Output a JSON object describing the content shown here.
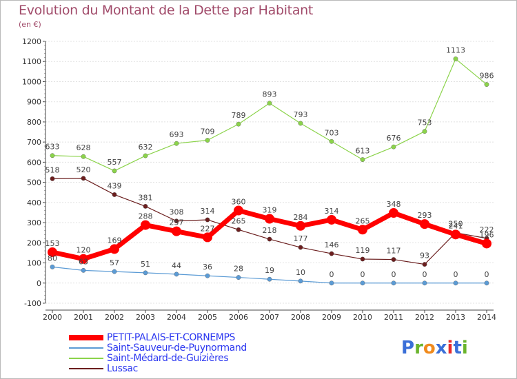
{
  "header": {
    "title": "Evolution du Montant de la Dette par Habitant",
    "subtitle": "(en €)"
  },
  "logo": {
    "text": "Proxiti",
    "colors": [
      "#3a6fd8",
      "#6ab42d",
      "#f08a1c",
      "#3a6fd8",
      "#e8292a",
      "#3a6fd8",
      "#6ab42d"
    ]
  },
  "chart_data": {
    "type": "line",
    "title": "Evolution du Montant de la Dette par Habitant",
    "subtitle": "(en €)",
    "xlabel": "",
    "ylabel": "",
    "ylim": [
      -100,
      1200
    ],
    "yticks": [
      -100,
      0,
      100,
      200,
      300,
      400,
      500,
      600,
      700,
      800,
      900,
      1000,
      1100,
      1200
    ],
    "grid": true,
    "legend_position": "bottom-left",
    "x": [
      "2000",
      "2001",
      "2002",
      "2003",
      "2004",
      "2005",
      "2006",
      "2007",
      "2008",
      "2009",
      "2010",
      "2011",
      "2012",
      "2013",
      "2014"
    ],
    "series": [
      {
        "name": "PETIT-PALAIS-ET-CORNEMPS",
        "color": "#ff0000",
        "emphasis": true,
        "values": [
          153,
          120,
          169,
          288,
          257,
          227,
          360,
          319,
          284,
          314,
          265,
          348,
          293,
          241,
          196
        ],
        "labels": [
          "153",
          "120",
          "169",
          "288",
          "257",
          "227",
          "360",
          "319",
          "284",
          "314",
          "265",
          "348",
          "293",
          "241",
          "196"
        ]
      },
      {
        "name": "Saint-Sauveur-de-Puynormand",
        "color": "#5b9bd5",
        "values": [
          80,
          63,
          57,
          51,
          44,
          36,
          28,
          19,
          10,
          0,
          0,
          0,
          0,
          0,
          0
        ],
        "labels": [
          "80",
          "63",
          "57",
          "51",
          "44",
          "36",
          "28",
          "19",
          "10",
          "0",
          "0",
          "0",
          "0",
          "0",
          "0"
        ]
      },
      {
        "name": "Saint-Médard-de-Guizières",
        "color": "#8bd34a",
        "values": [
          633,
          628,
          557,
          632,
          693,
          709,
          789,
          893,
          793,
          703,
          613,
          676,
          753,
          1113,
          986
        ],
        "labels": [
          "633",
          "628",
          "557",
          "632",
          "693",
          "709",
          "789",
          "893",
          "793",
          "703",
          "613",
          "676",
          "753",
          "1113",
          "986"
        ]
      },
      {
        "name": "Lussac",
        "color": "#6b1e1e",
        "values": [
          518,
          520,
          439,
          381,
          308,
          314,
          265,
          218,
          177,
          146,
          119,
          117,
          93,
          250,
          222
        ],
        "labels": [
          "518",
          "520",
          "439",
          "381",
          "308",
          "314",
          "265",
          "218",
          "177",
          "146",
          "119",
          "117",
          "93",
          "250",
          "222"
        ]
      }
    ]
  }
}
